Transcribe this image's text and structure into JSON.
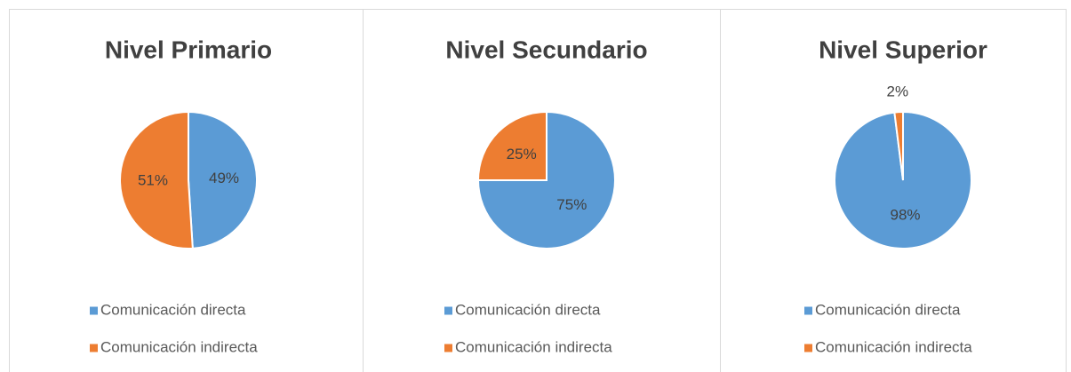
{
  "chart_data": [
    {
      "type": "pie",
      "title": "Nivel Primario",
      "categories": [
        "Comunicación directa",
        "Comunicación indirecta"
      ],
      "values": [
        49,
        51
      ],
      "value_labels": [
        "49%",
        "51%"
      ],
      "colors": [
        "#5b9bd5",
        "#ed7d31"
      ],
      "legend": "bottom"
    },
    {
      "type": "pie",
      "title": "Nivel Secundario",
      "categories": [
        "Comunicación directa",
        "Comunicación indirecta"
      ],
      "values": [
        75,
        25
      ],
      "value_labels": [
        "75%",
        "25%"
      ],
      "colors": [
        "#5b9bd5",
        "#ed7d31"
      ],
      "legend": "bottom"
    },
    {
      "type": "pie",
      "title": "Nivel Superior",
      "categories": [
        "Comunicación directa",
        "Comunicación indirecta"
      ],
      "values": [
        98,
        2
      ],
      "value_labels": [
        "98%",
        "2%"
      ],
      "colors": [
        "#5b9bd5",
        "#ed7d31"
      ],
      "legend": "bottom"
    }
  ]
}
